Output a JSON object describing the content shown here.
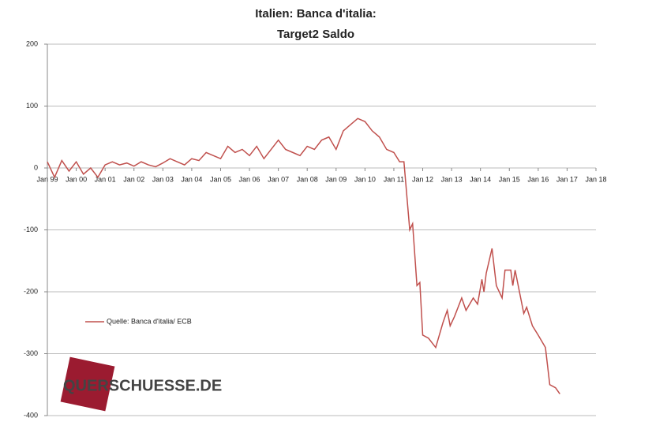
{
  "chart_data": {
    "type": "line",
    "title": "Italien: Banca d'italia:",
    "subtitle": "Target2 Saldo",
    "watermark": "QUERSCHUESSE.DE",
    "xlim": [
      1999,
      2018
    ],
    "xticks": [
      {
        "value": 1999,
        "label": "Jan 99"
      },
      {
        "value": 2000,
        "label": "Jan 00"
      },
      {
        "value": 2001,
        "label": "Jan 01"
      },
      {
        "value": 2002,
        "label": "Jan 02"
      },
      {
        "value": 2003,
        "label": "Jan 03"
      },
      {
        "value": 2004,
        "label": "Jan 04"
      },
      {
        "value": 2005,
        "label": "Jan 05"
      },
      {
        "value": 2006,
        "label": "Jan 06"
      },
      {
        "value": 2007,
        "label": "Jan 07"
      },
      {
        "value": 2008,
        "label": "Jan 08"
      },
      {
        "value": 2009,
        "label": "Jan 09"
      },
      {
        "value": 2010,
        "label": "Jan 10"
      },
      {
        "value": 2011,
        "label": "Jan 11"
      },
      {
        "value": 2012,
        "label": "Jan 12"
      },
      {
        "value": 2013,
        "label": "Jan 13"
      },
      {
        "value": 2014,
        "label": "Jan 14"
      },
      {
        "value": 2015,
        "label": "Jan 15"
      },
      {
        "value": 2016,
        "label": "Jan 16"
      },
      {
        "value": 2017,
        "label": "Jan 17"
      },
      {
        "value": 2018,
        "label": "Jan 18"
      }
    ],
    "ylim": [
      -400,
      200
    ],
    "yticks": [
      200,
      100,
      0,
      -100,
      -200,
      -300,
      -400
    ],
    "grid": true,
    "legend": "left",
    "series": [
      {
        "name": "Quelle: Banca d'italia/ ECB",
        "color": "#c0504d",
        "x": [
          1999,
          1999.25,
          1999.5,
          1999.75,
          2000,
          2000.25,
          2000.5,
          2000.75,
          2001,
          2001.25,
          2001.5,
          2001.75,
          2002,
          2002.25,
          2002.5,
          2002.75,
          2003,
          2003.25,
          2003.5,
          2003.75,
          2004,
          2004.25,
          2004.5,
          2004.75,
          2005,
          2005.25,
          2005.5,
          2005.75,
          2006,
          2006.25,
          2006.5,
          2006.75,
          2007,
          2007.25,
          2007.5,
          2007.75,
          2008,
          2008.25,
          2008.5,
          2008.75,
          2009,
          2009.25,
          2009.5,
          2009.75,
          2010,
          2010.25,
          2010.5,
          2010.75,
          2011,
          2011.2,
          2011.35,
          2011.55,
          2011.65,
          2011.8,
          2011.9,
          2012,
          2012.2,
          2012.45,
          2012.7,
          2012.85,
          2012.95,
          2013.1,
          2013.35,
          2013.5,
          2013.75,
          2013.9,
          2014.05,
          2014.12,
          2014.2,
          2014.4,
          2014.55,
          2014.75,
          2014.85,
          2015.05,
          2015.12,
          2015.2,
          2015.35,
          2015.5,
          2015.6,
          2015.8,
          2016,
          2016.25,
          2016.4,
          2016.6,
          2016.75
        ],
        "values": [
          10,
          -15,
          12,
          -5,
          10,
          -10,
          0,
          -15,
          5,
          10,
          5,
          8,
          3,
          10,
          5,
          2,
          8,
          15,
          10,
          5,
          15,
          12,
          25,
          20,
          15,
          35,
          25,
          30,
          20,
          35,
          15,
          30,
          45,
          30,
          25,
          20,
          35,
          30,
          45,
          50,
          30,
          60,
          70,
          80,
          75,
          60,
          50,
          30,
          25,
          10,
          10,
          -100,
          -90,
          -190,
          -185,
          -270,
          -275,
          -290,
          -250,
          -230,
          -255,
          -240,
          -210,
          -230,
          -210,
          -220,
          -180,
          -200,
          -170,
          -130,
          -190,
          -210,
          -165,
          -165,
          -190,
          -165,
          -200,
          -235,
          -225,
          -255,
          -270,
          -290,
          -350,
          -355,
          -365
        ]
      }
    ]
  }
}
